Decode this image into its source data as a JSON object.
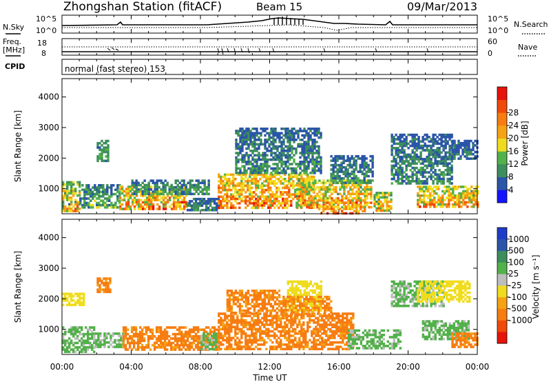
{
  "header": {
    "station": "Zhongshan Station (fitACF)",
    "beam": "Beam 15",
    "date": "09/Mar/2013"
  },
  "params_panel": {
    "nsky_label": "N.Sky",
    "nsky_ticks": [
      "10^5",
      "10^0"
    ],
    "nsearch_label": "N.Search",
    "nsearch_ticks": [
      "10^5",
      "10^0"
    ],
    "freq_label_line1": "Freq.",
    "freq_label_line2": "[MHz]",
    "freq_ticks": [
      "18",
      "8"
    ],
    "nave_label": "Nave",
    "nave_ticks": [
      "60",
      "0"
    ],
    "cpid_label": "CPID",
    "cpid_text": "normal (fast stereo) 153"
  },
  "colors": {
    "power_scale": [
      "#1414ff",
      "#2b55a8",
      "#3d8e5c",
      "#52b14a",
      "#f0dc1e",
      "#f5a214",
      "#f77d12",
      "#f04a0a",
      "#e6140a"
    ],
    "velocity_scale": [
      "#e6140a",
      "#f04a0a",
      "#f77d12",
      "#f5a214",
      "#f0dc1e",
      "#bdbdbd",
      "#52b14a",
      "#3d8e5c",
      "#2b55a8",
      "#1e3cc8"
    ]
  },
  "chart_data": [
    {
      "type": "heatmap",
      "name": "Power",
      "ylabel": "Slant Range [km]",
      "yticks": [
        1000,
        2000,
        3000,
        4000
      ],
      "ylim": [
        180,
        4600
      ],
      "x_unit": "hours UT",
      "xlim": [
        0,
        24
      ],
      "colorbar": {
        "label": "Power [dB]",
        "ticks": [
          "4",
          "8",
          "12",
          "16",
          "20",
          "24",
          "28"
        ],
        "range": [
          0,
          32
        ]
      },
      "blobs": [
        {
          "x": [
            0.0,
            1.0
          ],
          "y": [
            300,
            1250
          ],
          "v": [
            6,
            26
          ]
        },
        {
          "x": [
            1.0,
            3.3
          ],
          "y": [
            400,
            1150
          ],
          "v": [
            4,
            16
          ]
        },
        {
          "x": [
            2.0,
            2.6
          ],
          "y": [
            1900,
            2600
          ],
          "v": [
            6,
            14
          ]
        },
        {
          "x": [
            3.3,
            7.2
          ],
          "y": [
            350,
            1100
          ],
          "v": [
            10,
            30
          ]
        },
        {
          "x": [
            4.0,
            8.5
          ],
          "y": [
            800,
            1300
          ],
          "v": [
            4,
            14
          ]
        },
        {
          "x": [
            7.2,
            9.0
          ],
          "y": [
            300,
            700
          ],
          "v": [
            4,
            12
          ]
        },
        {
          "x": [
            9.0,
            14.5
          ],
          "y": [
            350,
            1500
          ],
          "v": [
            12,
            30
          ]
        },
        {
          "x": [
            10.0,
            15.0
          ],
          "y": [
            1500,
            3000
          ],
          "v": [
            4,
            12
          ]
        },
        {
          "x": [
            13.5,
            17.8
          ],
          "y": [
            400,
            1300
          ],
          "v": [
            10,
            28
          ]
        },
        {
          "x": [
            14.8,
            17.5
          ],
          "y": [
            200,
            450
          ],
          "v": [
            14,
            30
          ]
        },
        {
          "x": [
            15.5,
            18.0
          ],
          "y": [
            1200,
            2100
          ],
          "v": [
            4,
            12
          ]
        },
        {
          "x": [
            18.0,
            19.0
          ],
          "y": [
            300,
            900
          ],
          "v": [
            8,
            26
          ]
        },
        {
          "x": [
            19.0,
            22.5
          ],
          "y": [
            1200,
            2800
          ],
          "v": [
            4,
            12
          ]
        },
        {
          "x": [
            20.5,
            24.0
          ],
          "y": [
            400,
            1100
          ],
          "v": [
            10,
            28
          ]
        },
        {
          "x": [
            22.5,
            24.0
          ],
          "y": [
            2000,
            2600
          ],
          "v": [
            4,
            10
          ]
        }
      ]
    },
    {
      "type": "heatmap",
      "name": "Velocity",
      "ylabel": "Slant Range [km]",
      "yticks": [
        1000,
        2000,
        3000,
        4000
      ],
      "ylim": [
        180,
        4600
      ],
      "xlabel": "Time UT",
      "xticks": [
        "00:00",
        "04:00",
        "08:00",
        "12:00",
        "16:00",
        "20:00",
        "00:00"
      ],
      "xlim": [
        0,
        24
      ],
      "colorbar": {
        "label": "Velocity [m s⁻¹]",
        "ticks": [
          "1000",
          "500",
          "100",
          "25",
          "-25",
          "-100",
          "-500",
          "-1000"
        ],
        "range": [
          -1000,
          1000
        ]
      },
      "blobs": [
        {
          "x": [
            0.0,
            1.8
          ],
          "y": [
            300,
            1100
          ],
          "v": [
            50,
            300
          ]
        },
        {
          "x": [
            0.0,
            1.3
          ],
          "y": [
            1800,
            2200
          ],
          "v": [
            -20,
            20
          ]
        },
        {
          "x": [
            1.8,
            3.5
          ],
          "y": [
            400,
            900
          ],
          "v": [
            50,
            200
          ]
        },
        {
          "x": [
            2.0,
            2.8
          ],
          "y": [
            2200,
            2700
          ],
          "v": [
            -200,
            -50
          ]
        },
        {
          "x": [
            3.5,
            9.0
          ],
          "y": [
            350,
            1100
          ],
          "v": [
            -300,
            -60
          ]
        },
        {
          "x": [
            8.0,
            9.0
          ],
          "y": [
            350,
            900
          ],
          "v": [
            50,
            200
          ]
        },
        {
          "x": [
            9.0,
            16.8
          ],
          "y": [
            350,
            1550
          ],
          "v": [
            -300,
            -60
          ]
        },
        {
          "x": [
            9.5,
            12.5
          ],
          "y": [
            1550,
            2300
          ],
          "v": [
            -250,
            -50
          ]
        },
        {
          "x": [
            13.0,
            15.0
          ],
          "y": [
            1600,
            2600
          ],
          "v": [
            -20,
            20
          ]
        },
        {
          "x": [
            12.5,
            15.5
          ],
          "y": [
            1500,
            2100
          ],
          "v": [
            -200,
            -40
          ]
        },
        {
          "x": [
            16.5,
            19.5
          ],
          "y": [
            400,
            1000
          ],
          "v": [
            50,
            300
          ]
        },
        {
          "x": [
            19.0,
            22.0
          ],
          "y": [
            1800,
            2600
          ],
          "v": [
            50,
            250
          ]
        },
        {
          "x": [
            20.5,
            23.5
          ],
          "y": [
            1900,
            2600
          ],
          "v": [
            -20,
            20
          ]
        },
        {
          "x": [
            20.8,
            23.5
          ],
          "y": [
            700,
            1300
          ],
          "v": [
            50,
            300
          ]
        },
        {
          "x": [
            22.5,
            24.0
          ],
          "y": [
            400,
            900
          ],
          "v": [
            -300,
            -60
          ]
        }
      ]
    }
  ]
}
